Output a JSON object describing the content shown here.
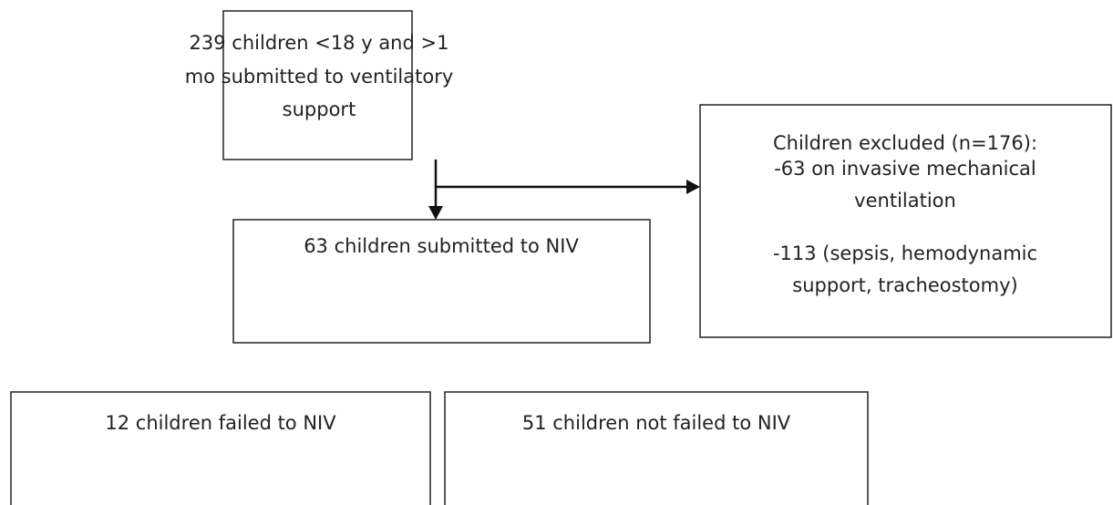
{
  "nodes": [
    {
      "lines": [
        "239 children <18 y and >1",
        "mo  submitted to ventilatory",
        "support"
      ]
    },
    {
      "lines": [
        "Children excluded (n=176):",
        "-63 on invasive mechanical",
        "ventilation",
        "-113 (sepsis, hemodynamic",
        "support, tracheostomy)"
      ]
    },
    {
      "lines": [
        "63 children submitted to NIV"
      ]
    },
    {
      "lines": [
        "12 children failed to NIV"
      ]
    },
    {
      "lines": [
        "51 children not failed to NIV"
      ]
    }
  ]
}
